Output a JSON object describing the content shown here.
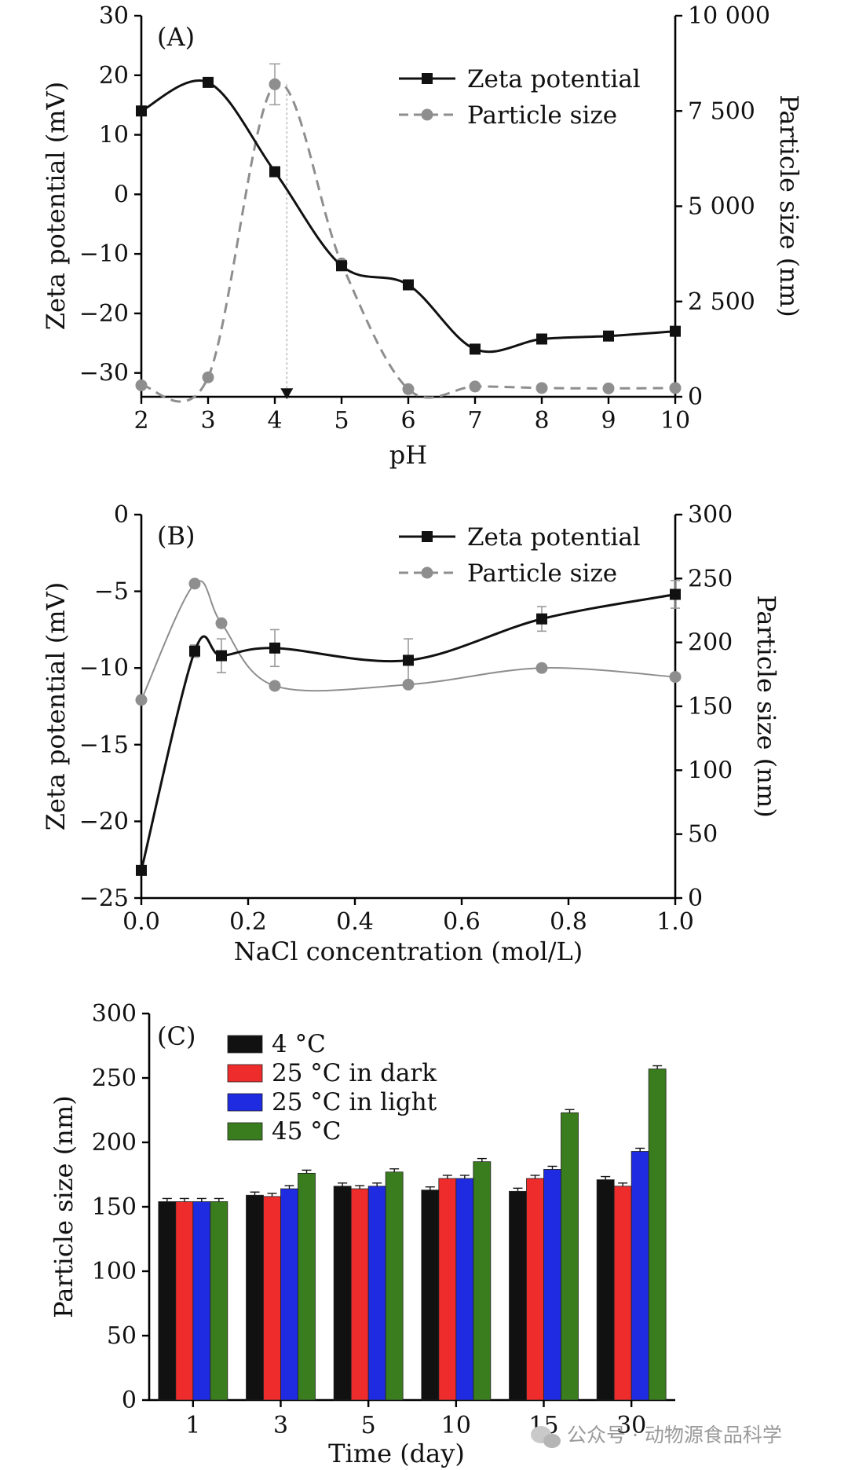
{
  "chart_data": [
    {
      "type": "line",
      "panel": "(A)",
      "xlabel": "pH",
      "ylabel_left": "Zeta potential (mV)",
      "ylabel_right": "Particle size (nm)",
      "xlim": [
        2,
        10
      ],
      "ylim_left": [
        -34,
        30
      ],
      "ylim_right": [
        0,
        10000
      ],
      "x_ticks": [
        "2",
        "3",
        "4",
        "5",
        "6",
        "7",
        "8",
        "9",
        "10"
      ],
      "y_ticks_left": [
        "30",
        "20",
        "10",
        "0",
        "−10",
        "−20",
        "−30"
      ],
      "y_ticks_right": [
        "10 000",
        "7 500",
        "5 000",
        "2 500",
        "0"
      ],
      "legend": [
        "Zeta potential",
        "Particle size"
      ],
      "series": [
        {
          "name": "Zeta potential",
          "axis": "left",
          "x": [
            2,
            3,
            4,
            5,
            6,
            7,
            8,
            9,
            10
          ],
          "values": [
            14,
            18.8,
            3.8,
            -12,
            -15.2,
            -26,
            -24.3,
            -23.8,
            -23
          ]
        },
        {
          "name": "Particle size",
          "axis": "right",
          "x": [
            2,
            3,
            4,
            5,
            6,
            7,
            8,
            9,
            10
          ],
          "values": [
            300,
            510,
            8200,
            3500,
            200,
            270,
            230,
            220,
            230
          ]
        }
      ],
      "isoelectric_marker": {
        "x": 4.18,
        "y": -33.5
      }
    },
    {
      "type": "line",
      "panel": "(B)",
      "xlabel": "NaCl concentration (mol/L)",
      "ylabel_left": "Zeta potential (mV)",
      "ylabel_right": "Particle size (nm)",
      "xlim": [
        0,
        1
      ],
      "ylim_left": [
        -25,
        0
      ],
      "ylim_right": [
        0,
        300
      ],
      "x_ticks": [
        "0.0",
        "0.2",
        "0.4",
        "0.6",
        "0.8",
        "1.0"
      ],
      "y_ticks_left": [
        "0",
        "−5",
        "−10",
        "−15",
        "−20",
        "−25"
      ],
      "y_ticks_right": [
        "300",
        "250",
        "200",
        "150",
        "100",
        "50",
        "0"
      ],
      "legend": [
        "Zeta potential",
        "Particle size"
      ],
      "series": [
        {
          "name": "Zeta potential",
          "axis": "left",
          "x": [
            0,
            0.1,
            0.15,
            0.25,
            0.5,
            0.75,
            1.0
          ],
          "values": [
            -23.2,
            -8.9,
            -9.2,
            -8.7,
            -9.5,
            -6.8,
            -5.2
          ]
        },
        {
          "name": "Particle size",
          "axis": "right",
          "x": [
            0,
            0.1,
            0.15,
            0.25,
            0.5,
            0.75,
            1.0
          ],
          "values": [
            155,
            246,
            215,
            166,
            167,
            180,
            173
          ]
        }
      ]
    },
    {
      "type": "bar",
      "panel": "(C)",
      "xlabel": "Time (day)",
      "ylabel": "Particle size (nm)",
      "ylim": [
        0,
        300
      ],
      "y_ticks": [
        "0",
        "50",
        "100",
        "150",
        "200",
        "250",
        "300"
      ],
      "categories": [
        "1",
        "3",
        "5",
        "10",
        "15",
        "30"
      ],
      "series": [
        {
          "name": "4 °C",
          "color": "#111111",
          "values": [
            154,
            159,
            166,
            163,
            162,
            171
          ]
        },
        {
          "name": "25 °C in dark",
          "color": "#ee2c2c",
          "values": [
            154,
            158,
            164,
            172,
            172,
            166
          ]
        },
        {
          "name": "25 °C in light",
          "color": "#1f2be0",
          "values": [
            154,
            164,
            166,
            172,
            179,
            193
          ]
        },
        {
          "name": "45 °C",
          "color": "#3a7d1e",
          "values": [
            154,
            176,
            177,
            185,
            223,
            257
          ]
        }
      ]
    }
  ],
  "watermark": "公众号 · 动物源食品科学"
}
